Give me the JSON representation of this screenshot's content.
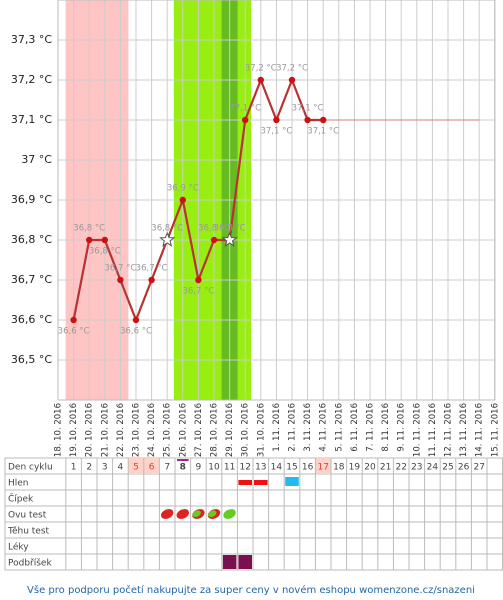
{
  "chart_data": {
    "type": "line",
    "categories": [
      "18. 10. 2016",
      "19. 10. 2016",
      "20. 10. 2016",
      "21. 10. 2016",
      "22. 10. 2016",
      "23. 10. 2016",
      "24. 10. 2016",
      "25. 10. 2016",
      "26. 10. 2016",
      "27. 10. 2016",
      "28. 10. 2016",
      "29. 10. 2016",
      "30. 10. 2016",
      "31. 10. 2016",
      "1. 11. 2016",
      "2. 11. 2016",
      "3. 11. 2016",
      "4. 11. 2016",
      "5. 11. 2016",
      "6. 11. 2016",
      "7. 11. 2016",
      "8. 11. 2016",
      "9. 11. 2016",
      "10. 11. 2016",
      "11. 11. 2016",
      "12. 11. 2016",
      "13. 11. 2016",
      "14. 11. 2016",
      "15. 11. 2016"
    ],
    "series": [
      {
        "color": "#b83232",
        "values": [
          null,
          36.6,
          36.8,
          36.8,
          36.7,
          36.6,
          36.7,
          36.8,
          36.9,
          36.7,
          36.8,
          36.8,
          37.1,
          37.2,
          37.1,
          37.2,
          37.1,
          37.1,
          null,
          null,
          null,
          null,
          null,
          null,
          null,
          null,
          null,
          null,
          null
        ],
        "value_labels": [
          null,
          "36,6 °C",
          "36,8 °C",
          "36,8 °C",
          "36,7 °C",
          "36,6 °C",
          "36,7 °C",
          "36,8 °C",
          "36,9 °C",
          "36,7 °C",
          "36,8 °C",
          "36,8 °C",
          "37,1 °C",
          "37,2 °C",
          "37,1 °C",
          "37,2 °C",
          "37,1 °C",
          "37,1 °C",
          null,
          null,
          null,
          null,
          null,
          null,
          null,
          null,
          null,
          null,
          null
        ],
        "star_indices": [
          7,
          11
        ]
      },
      {
        "color": "#c88080",
        "values": [
          null,
          null,
          null,
          null,
          null,
          null,
          null,
          null,
          null,
          null,
          null,
          null,
          null,
          null,
          null,
          null,
          null,
          37.1,
          37.1,
          37.1,
          37.1,
          37.1,
          37.1,
          37.1,
          37.1,
          37.1,
          37.1,
          37.1,
          null
        ]
      }
    ],
    "ylim": [
      36.4,
      37.4
    ],
    "yticks": [
      {
        "value": 36.5,
        "label": "36,5 °C"
      },
      {
        "value": 36.6,
        "label": "36,6 °C"
      },
      {
        "value": 36.7,
        "label": "36,7 °C"
      },
      {
        "value": 36.8,
        "label": "36,8 °C"
      },
      {
        "value": 36.9,
        "label": "36,9 °C"
      },
      {
        "value": 37,
        "label": "37 °C"
      },
      {
        "value": 37.1,
        "label": "37,1 °C"
      },
      {
        "value": 37.2,
        "label": "37,2 °C"
      },
      {
        "value": 37.3,
        "label": "37,3 °C"
      }
    ],
    "grid": true
  },
  "table": {
    "row_labels": [
      "Den cyklu",
      "Hlen",
      "Čípek",
      "Ovu test",
      "Těhu test",
      "Léky",
      "Podbříšek"
    ],
    "cycle_days": [
      1,
      2,
      3,
      4,
      5,
      6,
      7,
      8,
      9,
      10,
      11,
      12,
      13,
      14,
      15,
      16,
      17,
      18,
      19,
      20,
      21,
      22,
      23,
      24,
      25,
      26,
      27
    ]
  },
  "footer": "Vše pro podporu početí nakupujte za super ceny v novém eshopu womenzone.cz/snazeni"
}
